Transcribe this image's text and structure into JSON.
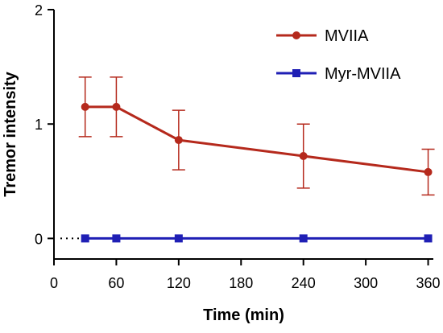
{
  "chart_data": {
    "type": "line",
    "xlabel": "Time (min)",
    "ylabel": "Tremor intensity",
    "xlim": [
      0,
      365
    ],
    "ylim": [
      -0.18,
      2
    ],
    "xticks": [
      0,
      60,
      120,
      180,
      240,
      300,
      360
    ],
    "xtick_labels": [
      "0",
      "60",
      "120",
      "180",
      "240",
      "300",
      "360"
    ],
    "yticks": [
      0,
      1,
      2
    ],
    "ytick_labels": [
      "0",
      "1",
      "2"
    ],
    "legend_position": "top-right",
    "series": [
      {
        "name": "MVIIA",
        "color": "#b5291c",
        "marker": "circle",
        "x": [
          30,
          60,
          120,
          240,
          360
        ],
        "y": [
          1.15,
          1.15,
          0.86,
          0.72,
          0.58
        ],
        "error": [
          0.26,
          0.26,
          0.26,
          0.28,
          0.2
        ]
      },
      {
        "name": "Myr-MVIIA",
        "color": "#1f1fb5",
        "marker": "square",
        "x": [
          30,
          60,
          120,
          240,
          360
        ],
        "y": [
          0,
          0,
          0,
          0,
          0
        ],
        "error": [
          0,
          0,
          0,
          0,
          0
        ]
      }
    ],
    "dotted_origin_segment": {
      "from_x": 0,
      "to_x": 30,
      "y": 0
    }
  }
}
